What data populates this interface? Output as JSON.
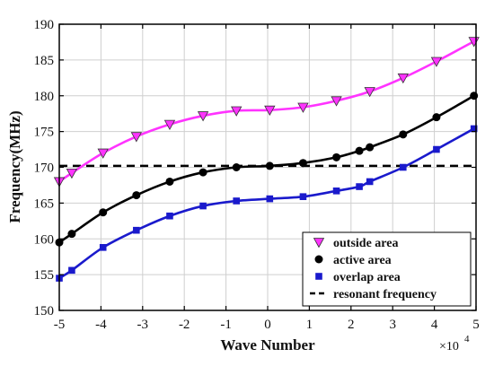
{
  "chart_data": {
    "type": "line",
    "xlabel": "Wave Number",
    "ylabel": "Frequency(MHz)",
    "x_multiplier": "×10",
    "x_exponent": "4",
    "xlim": [
      -5,
      5
    ],
    "ylim": [
      150,
      190
    ],
    "x_ticks": [
      -5,
      -4,
      -3,
      -2,
      -1,
      0,
      1,
      2,
      3,
      4,
      5
    ],
    "y_ticks": [
      150,
      155,
      160,
      165,
      170,
      175,
      180,
      185,
      190
    ],
    "grid": true,
    "legend_position": "bottom-right",
    "series": [
      {
        "name": "outside area",
        "color": "#ff33ff",
        "marker": "triangle-down",
        "x": [
          -5,
          -4.7,
          -3.95,
          -3.15,
          -2.35,
          -1.55,
          -0.75,
          0.05,
          0.85,
          1.65,
          2.45,
          3.25,
          4.05,
          4.95
        ],
        "y": [
          168.0,
          169.2,
          172.0,
          174.3,
          176.0,
          177.2,
          177.9,
          178.0,
          178.4,
          179.3,
          180.6,
          182.5,
          184.8,
          187.6
        ]
      },
      {
        "name": "active area",
        "color": "#000000",
        "marker": "circle",
        "x": [
          -5,
          -4.7,
          -3.95,
          -3.15,
          -2.35,
          -1.55,
          -0.75,
          0.05,
          0.85,
          1.65,
          2.2,
          2.45,
          3.25,
          4.05,
          4.95
        ],
        "y": [
          159.5,
          160.7,
          163.7,
          166.1,
          168.0,
          169.3,
          170.0,
          170.2,
          170.6,
          171.4,
          172.3,
          172.8,
          174.6,
          177.0,
          180.0
        ]
      },
      {
        "name": "overlap area",
        "color": "#1a1acc",
        "marker": "square",
        "x": [
          -5,
          -4.7,
          -3.95,
          -3.15,
          -2.35,
          -1.55,
          -0.75,
          0.05,
          0.85,
          1.65,
          2.2,
          2.45,
          3.25,
          4.05,
          4.95
        ],
        "y": [
          154.5,
          155.6,
          158.8,
          161.2,
          163.2,
          164.6,
          165.3,
          165.6,
          165.9,
          166.7,
          167.3,
          168.0,
          170.0,
          172.5,
          175.4
        ]
      }
    ],
    "reference_line": {
      "name": "resonant frequency",
      "y": 170.2,
      "color": "#000000",
      "style": "dashed"
    }
  }
}
